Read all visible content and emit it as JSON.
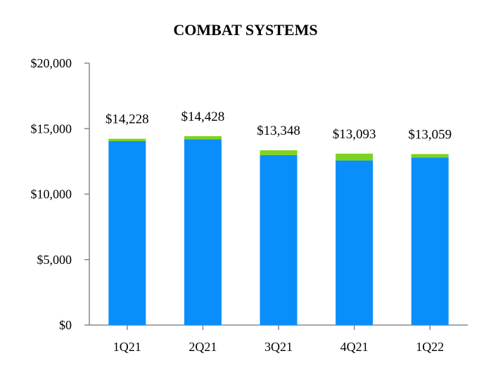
{
  "chart_data": {
    "type": "bar",
    "stacked": true,
    "title": "COMBAT SYSTEMS",
    "xlabel": "",
    "ylabel": "",
    "categories": [
      "1Q21",
      "2Q21",
      "3Q21",
      "4Q21",
      "1Q22"
    ],
    "series": [
      {
        "color": "#0a8ffa",
        "values": [
          14050,
          14180,
          12980,
          12570,
          12800
        ]
      },
      {
        "color": "#7ed321",
        "values": [
          178,
          248,
          368,
          523,
          259
        ]
      }
    ],
    "data_labels": [
      "$14,228",
      "$14,428",
      "$13,348",
      "$13,093",
      "$13,059"
    ],
    "y_ticks": [
      {
        "value": 0,
        "label": "$0"
      },
      {
        "value": 5000,
        "label": "$5,000"
      },
      {
        "value": 10000,
        "label": "$10,000"
      },
      {
        "value": 15000,
        "label": "$15,000"
      },
      {
        "value": 20000,
        "label": "$20,000"
      }
    ],
    "ylim": [
      0,
      20000
    ],
    "grid": false,
    "legend": "none",
    "axis_color": "#888888"
  }
}
